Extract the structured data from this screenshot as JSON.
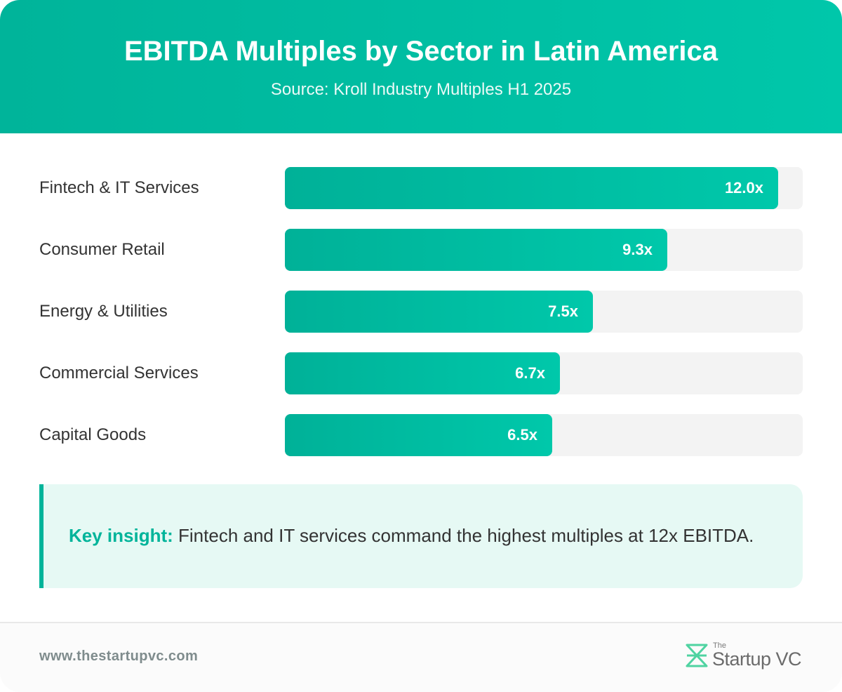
{
  "header": {
    "title": "EBITDA Multiples by Sector in Latin America",
    "subtitle": "Source: Kroll Industry Multiples H1 2025"
  },
  "chart_data": {
    "type": "bar",
    "orientation": "horizontal",
    "title": "EBITDA Multiples by Sector in Latin America",
    "subtitle": "Source: Kroll Industry Multiples H1 2025",
    "categories": [
      "Fintech & IT Services",
      "Consumer Retail",
      "Energy & Utilities",
      "Commercial Services",
      "Capital Goods"
    ],
    "values": [
      12.0,
      9.3,
      7.5,
      6.7,
      6.5
    ],
    "value_labels": [
      "12.0x",
      "9.3x",
      "7.5x",
      "6.7x",
      "6.5x"
    ],
    "xlim": [
      0,
      12.6
    ],
    "grid": false,
    "legend": "none"
  },
  "insight": {
    "label": "Key insight:",
    "text": " Fintech and IT services command the highest multiples at 12x EBITDA."
  },
  "footer": {
    "website": "www.thestartupvc.com",
    "logo_small": "The",
    "logo_name": "Startup VC"
  },
  "colors": {
    "accent": "#00b49a",
    "accent_light": "#00c8aa",
    "track": "#f3f3f3",
    "insight_bg": "#e6f9f4",
    "logo_green": "#4fd3a1"
  }
}
